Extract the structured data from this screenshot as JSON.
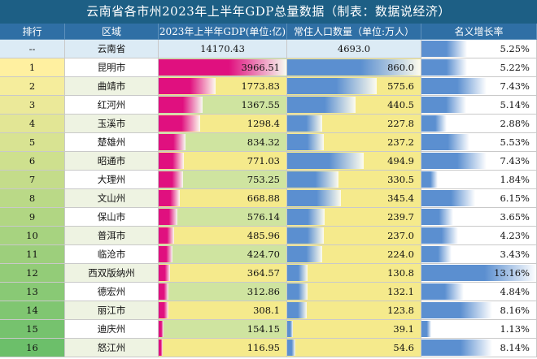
{
  "title": "云南省各市州2023年上半年GDP总量数据（制表：数据说经济）",
  "headers": {
    "rank": "排行",
    "region": "区域",
    "gdp": "2023年上半年GDP(单位:亿)",
    "population": "常住人口数量（单位:万人）",
    "growth": "名义增长率"
  },
  "colors": {
    "title_bg": "#1d5f85",
    "header_bg": "#2f6fa5",
    "gdp_bar": "#e0107f",
    "pop_bar": "#5b8fd0",
    "growth_bar": "#5b8fd0",
    "province_row": "#dcebf5",
    "rank_start": "#fff0a0",
    "rank_end": "#6cbf6a",
    "fill_yellow": "#f5ea8c",
    "fill_green": "#cfe4a0"
  },
  "chart_data": {
    "type": "table",
    "title": "云南省各市州2023年上半年GDP总量数据（制表：数据说经济）",
    "columns": [
      "排行",
      "区域",
      "2023年上半年GDP(单位:亿)",
      "常住人口数量（单位:万人）",
      "名义增长率"
    ],
    "bar_ranges": {
      "gdp": [
        0,
        3966.51
      ],
      "population": [
        0,
        860
      ],
      "growth": [
        0,
        13.16
      ]
    },
    "province": {
      "rank": "--",
      "region": "云南省",
      "gdp": "14170.43",
      "population": "4693.0",
      "growth": "5.25%",
      "growth_value": 5.25
    },
    "rows": [
      {
        "rank": "1",
        "region": "昆明市",
        "gdp": "3966.51",
        "gdp_value": 3966.51,
        "population": "860.0",
        "pop_value": 860.0,
        "growth": "5.22%",
        "growth_value": 5.22
      },
      {
        "rank": "2",
        "region": "曲靖市",
        "gdp": "1773.83",
        "gdp_value": 1773.83,
        "population": "575.6",
        "pop_value": 575.6,
        "growth": "7.43%",
        "growth_value": 7.43
      },
      {
        "rank": "3",
        "region": "红河州",
        "gdp": "1367.55",
        "gdp_value": 1367.55,
        "population": "440.5",
        "pop_value": 440.5,
        "growth": "5.14%",
        "growth_value": 5.14
      },
      {
        "rank": "4",
        "region": "玉溪市",
        "gdp": "1298.4",
        "gdp_value": 1298.4,
        "population": "227.8",
        "pop_value": 227.8,
        "growth": "2.88%",
        "growth_value": 2.88
      },
      {
        "rank": "5",
        "region": "楚雄州",
        "gdp": "834.32",
        "gdp_value": 834.32,
        "population": "237.2",
        "pop_value": 237.2,
        "growth": "5.53%",
        "growth_value": 5.53
      },
      {
        "rank": "6",
        "region": "昭通市",
        "gdp": "771.03",
        "gdp_value": 771.03,
        "population": "494.9",
        "pop_value": 494.9,
        "growth": "7.43%",
        "growth_value": 7.43
      },
      {
        "rank": "7",
        "region": "大理州",
        "gdp": "753.25",
        "gdp_value": 753.25,
        "population": "330.5",
        "pop_value": 330.5,
        "growth": "1.84%",
        "growth_value": 1.84
      },
      {
        "rank": "8",
        "region": "文山州",
        "gdp": "668.88",
        "gdp_value": 668.88,
        "population": "345.4",
        "pop_value": 345.4,
        "growth": "6.15%",
        "growth_value": 6.15
      },
      {
        "rank": "9",
        "region": "保山市",
        "gdp": "576.14",
        "gdp_value": 576.14,
        "population": "239.7",
        "pop_value": 239.7,
        "growth": "3.65%",
        "growth_value": 3.65
      },
      {
        "rank": "10",
        "region": "普洱市",
        "gdp": "485.96",
        "gdp_value": 485.96,
        "population": "237.0",
        "pop_value": 237.0,
        "growth": "4.23%",
        "growth_value": 4.23
      },
      {
        "rank": "11",
        "region": "临沧市",
        "gdp": "424.70",
        "gdp_value": 424.7,
        "population": "224.0",
        "pop_value": 224.0,
        "growth": "3.43%",
        "growth_value": 3.43
      },
      {
        "rank": "12",
        "region": "西双版纳州",
        "gdp": "364.57",
        "gdp_value": 364.57,
        "population": "130.8",
        "pop_value": 130.8,
        "growth": "13.16%",
        "growth_value": 13.16
      },
      {
        "rank": "13",
        "region": "德宏州",
        "gdp": "312.86",
        "gdp_value": 312.86,
        "population": "132.1",
        "pop_value": 132.1,
        "growth": "4.84%",
        "growth_value": 4.84
      },
      {
        "rank": "14",
        "region": "丽江市",
        "gdp": "308.1",
        "gdp_value": 308.1,
        "population": "123.8",
        "pop_value": 123.8,
        "growth": "8.16%",
        "growth_value": 8.16
      },
      {
        "rank": "15",
        "region": "迪庆州",
        "gdp": "154.15",
        "gdp_value": 154.15,
        "population": "39.1",
        "pop_value": 39.1,
        "growth": "1.13%",
        "growth_value": 1.13
      },
      {
        "rank": "16",
        "region": "怒江州",
        "gdp": "116.95",
        "gdp_value": 116.95,
        "population": "54.6",
        "pop_value": 54.6,
        "growth": "8.14%",
        "growth_value": 8.14
      }
    ]
  }
}
